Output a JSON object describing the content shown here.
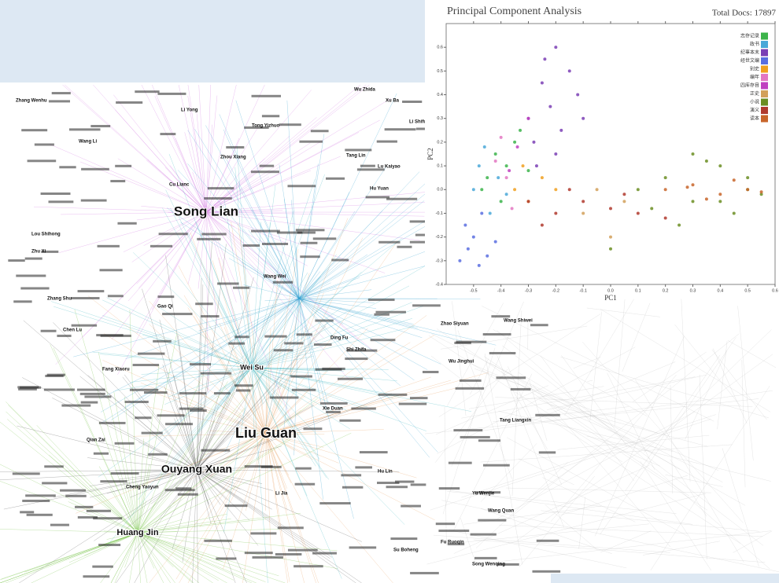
{
  "network": {
    "nodes": [
      "Song Lian",
      "Liu Guan",
      "Ouyang Xuan",
      "Huang Jin",
      "Wei Su",
      "Zhang Wenhu",
      "Ding Fu",
      "Wang Wei",
      "Shi Zhifa",
      "Zhu Xi",
      "Song Wenqing",
      "Zhao Siyuan",
      "Tang Liangxin",
      "Wu Jinghui",
      "Lu Kaiyao",
      "Wang Li",
      "Xu Ba",
      "Li Shifu",
      "Li Jia",
      "Tang Lin",
      "Hu Yuan",
      "Wang Shiwei",
      "Yu Wenjie",
      "Cheng Yaoyun",
      "Su Boheng",
      "Cu Lianc",
      "Zhou Xiang",
      "Wu Zhida",
      "Wang Quan",
      "Fang Xiaoru",
      "Zhang Shu",
      "Lou Shihong",
      "Li Yong",
      "Xie Duan",
      "Chen Lu",
      "Tong Yizhuo",
      "Fu Ruoqin",
      "Hu Lin",
      "Gao Qi",
      "Qian Zai"
    ]
  },
  "chart_data": {
    "type": "scatter",
    "title": "Principal Component Analysis",
    "subtitle": "Total Docs: 17897",
    "xlabel": "PC1",
    "ylabel": "PC2",
    "xlim": [
      -0.6,
      0.6
    ],
    "ylim": [
      -0.4,
      0.7
    ],
    "xticks": [
      -0.5,
      -0.4,
      -0.3,
      -0.2,
      -0.1,
      {
        "value": 0,
        "label": "0.0"
      },
      0.1,
      0.2,
      0.3,
      0.4,
      0.5,
      0.6
    ],
    "yticks": [
      -0.4,
      -0.3,
      -0.2,
      -0.1,
      {
        "value": 0,
        "label": "0.0"
      },
      0.1,
      0.2,
      0.3,
      0.4,
      0.5,
      0.6
    ],
    "legend": "upper right",
    "series": [
      {
        "name": "志存记录",
        "color": "#3cb44b",
        "x": [
          -0.45,
          -0.42,
          -0.38,
          -0.35,
          -0.4,
          -0.3,
          -0.33,
          -0.47
        ],
        "values": [
          0.05,
          0.15,
          0.1,
          0.2,
          -0.05,
          0.08,
          0.25,
          0.0
        ]
      },
      {
        "name": "政书",
        "color": "#4aa8d8",
        "x": [
          -0.5,
          -0.48,
          -0.44,
          -0.41,
          -0.46,
          -0.38
        ],
        "values": [
          0.0,
          0.1,
          -0.1,
          0.05,
          0.18,
          -0.02
        ]
      },
      {
        "name": "纪事本末",
        "color": "#7b3fb5",
        "x": [
          -0.3,
          -0.25,
          -0.2,
          -0.22,
          -0.15,
          -0.28,
          -0.18,
          -0.12,
          -0.24,
          -0.27,
          -0.2,
          -0.1
        ],
        "values": [
          0.3,
          0.45,
          0.6,
          0.35,
          0.5,
          0.2,
          0.25,
          0.4,
          0.55,
          0.1,
          0.15,
          0.3
        ]
      },
      {
        "name": "经世文编",
        "color": "#5a6ee0",
        "x": [
          -0.55,
          -0.52,
          -0.5,
          -0.48,
          -0.45,
          -0.53,
          -0.47,
          -0.42
        ],
        "values": [
          -0.3,
          -0.25,
          -0.2,
          -0.32,
          -0.28,
          -0.15,
          -0.1,
          -0.22
        ]
      },
      {
        "name": "别史",
        "color": "#f0a020",
        "x": [
          -0.35,
          -0.3,
          -0.25,
          -0.2,
          -0.32
        ],
        "values": [
          0.0,
          -0.05,
          0.05,
          0.0,
          0.1
        ]
      },
      {
        "name": "编年",
        "color": "#e377c2",
        "x": [
          -0.42,
          -0.38,
          -0.36,
          -0.4
        ],
        "values": [
          0.12,
          0.05,
          -0.08,
          0.22
        ]
      },
      {
        "name": "四库存目",
        "color": "#c040c0",
        "x": [
          -0.34,
          -0.3,
          -0.37
        ],
        "values": [
          0.18,
          0.3,
          0.08
        ]
      },
      {
        "name": "正史",
        "color": "#d2a05a",
        "x": [
          -0.1,
          0.0,
          0.05,
          -0.05
        ],
        "values": [
          -0.1,
          -0.2,
          -0.05,
          0.0
        ]
      },
      {
        "name": "小说",
        "color": "#6b8e23",
        "x": [
          0.1,
          0.2,
          0.3,
          0.4,
          0.5,
          0.55,
          0.45,
          0.35,
          0.25,
          0.15,
          0.0,
          0.3,
          0.4,
          0.5
        ],
        "values": [
          0.0,
          0.05,
          -0.05,
          0.1,
          0.0,
          -0.02,
          -0.1,
          0.12,
          -0.15,
          -0.08,
          -0.25,
          0.15,
          -0.05,
          0.05
        ]
      },
      {
        "name": "演义",
        "color": "#b03a2e",
        "x": [
          -0.3,
          -0.2,
          -0.1,
          0.0,
          0.1,
          0.2,
          -0.15,
          0.05,
          -0.25
        ],
        "values": [
          -0.05,
          -0.1,
          -0.05,
          -0.08,
          -0.1,
          -0.12,
          0.0,
          -0.02,
          -0.15
        ]
      },
      {
        "name": "读本",
        "color": "#c8652a",
        "x": [
          0.2,
          0.3,
          0.4,
          0.5,
          0.45,
          0.35,
          0.28,
          0.55
        ],
        "values": [
          0.0,
          0.02,
          -0.02,
          0.0,
          0.04,
          -0.04,
          0.01,
          -0.01
        ]
      }
    ]
  }
}
